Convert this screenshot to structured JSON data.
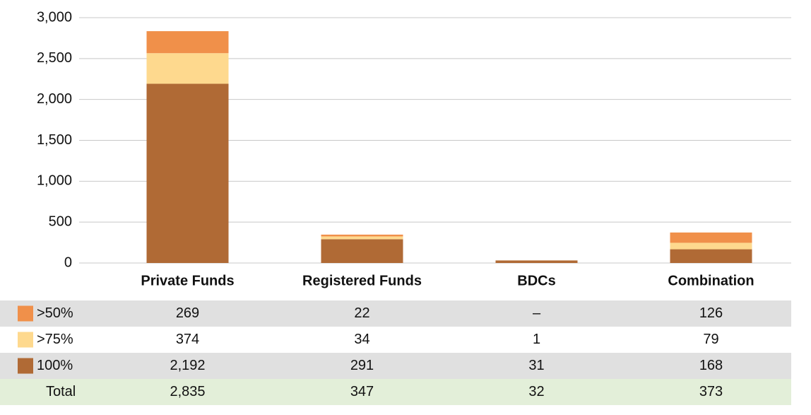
{
  "chart_data": {
    "type": "stacked_bar",
    "categories": [
      "Private Funds",
      "Registered Funds",
      "BDCs",
      "Combination"
    ],
    "series": [
      {
        "name": ">50%",
        "color": "#f0904a",
        "values": [
          269,
          22,
          null,
          126
        ],
        "value_labels": [
          "269",
          "22",
          "–",
          "126"
        ]
      },
      {
        "name": ">75%",
        "color": "#fed98e",
        "values": [
          374,
          34,
          1,
          79
        ],
        "value_labels": [
          "374",
          "34",
          "1",
          "79"
        ]
      },
      {
        "name": "100%",
        "color": "#b06a35",
        "values": [
          2192,
          291,
          31,
          168
        ],
        "value_labels": [
          "2,192",
          "291",
          "31",
          "168"
        ]
      }
    ],
    "totals": {
      "name": "Total",
      "values": [
        2835,
        347,
        32,
        373
      ],
      "value_labels": [
        "2,835",
        "347",
        "32",
        "373"
      ]
    },
    "ylim": [
      0,
      3000
    ],
    "yticks": [
      0,
      500,
      {
        "value": 1000,
        "label": "1,000"
      },
      {
        "value": 1500,
        "label": "1,500"
      },
      {
        "value": 2000,
        "label": "2,000"
      },
      {
        "value": 2500,
        "label": "2,500"
      },
      {
        "value": 3000,
        "label": "3,000"
      }
    ],
    "grid": true
  }
}
